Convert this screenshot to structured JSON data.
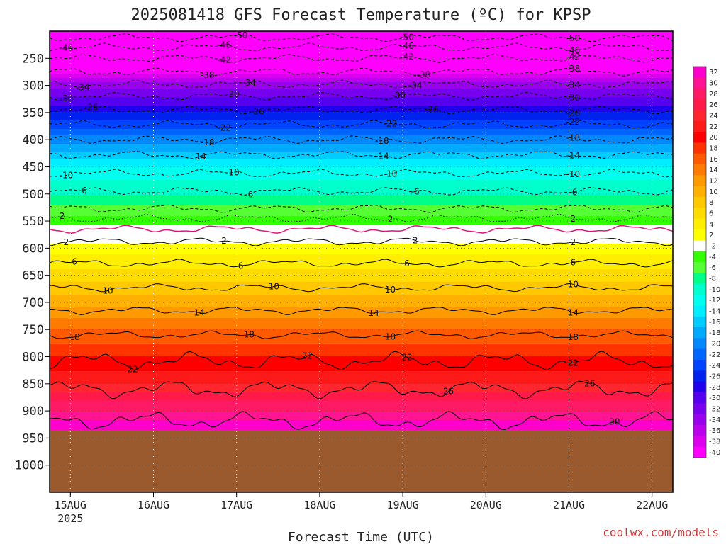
{
  "chart_data": {
    "type": "heatmap",
    "title": "2025081418 GFS Forecast Temperature (ºC) for KPSP",
    "xlabel": "Forecast Time (UTC)",
    "ylabel": "",
    "credit": "coolwx.com/models",
    "x_ticks": [
      {
        "label": "15AUG",
        "sub": "2025",
        "day": 0.25
      },
      {
        "label": "16AUG",
        "sub": "",
        "day": 1.25
      },
      {
        "label": "17AUG",
        "sub": "",
        "day": 2.25
      },
      {
        "label": "18AUG",
        "sub": "",
        "day": 3.25
      },
      {
        "label": "19AUG",
        "sub": "",
        "day": 4.25
      },
      {
        "label": "20AUG",
        "sub": "",
        "day": 5.25
      },
      {
        "label": "21AUG",
        "sub": "",
        "day": 6.25
      },
      {
        "label": "22AUG",
        "sub": "",
        "day": 7.25
      }
    ],
    "xlim": [
      0,
      7.5
    ],
    "y_ticks": [
      250,
      300,
      350,
      400,
      450,
      500,
      550,
      600,
      650,
      700,
      750,
      800,
      850,
      900,
      950,
      1000
    ],
    "ylim": [
      200,
      1050
    ],
    "ground_pressure": 935,
    "ground_color": "#9b5a2e",
    "colorbar_levels": [
      32,
      30,
      28,
      26,
      24,
      22,
      20,
      18,
      16,
      14,
      12,
      10,
      8,
      6,
      4,
      2,
      -2,
      -4,
      -6,
      -8,
      -10,
      -12,
      -14,
      -16,
      -18,
      -20,
      -22,
      -24,
      -26,
      -28,
      -30,
      -32,
      -34,
      -36,
      -38,
      -40
    ],
    "colorbar_colors": [
      "#ff00cc",
      "#ff1493",
      "#ff1a66",
      "#ff1a4a",
      "#ff2630",
      "#ff1a1a",
      "#ff0000",
      "#ff3300",
      "#ff5a00",
      "#ff7a00",
      "#ff9900",
      "#ffb000",
      "#ffc800",
      "#ffdc00",
      "#ffee00",
      "#ffff00",
      "#ffffff",
      "#33ff00",
      "#55ff33",
      "#00ff88",
      "#00ffcc",
      "#00ffee",
      "#00eeff",
      "#00ccff",
      "#00aaff",
      "#0088ff",
      "#0066ff",
      "#0044ff",
      "#0022ee",
      "#2200ee",
      "#5500ee",
      "#7700ee",
      "#9900ee",
      "#bb00ee",
      "#dd00ee",
      "#ff00ff"
    ],
    "temperature_profile": [
      {
        "pressure": 200,
        "temp": -55
      },
      {
        "pressure": 250,
        "temp": -44
      },
      {
        "pressure": 300,
        "temp": -33
      },
      {
        "pressure": 350,
        "temp": -26
      },
      {
        "pressure": 400,
        "temp": -19
      },
      {
        "pressure": 450,
        "temp": -12
      },
      {
        "pressure": 500,
        "temp": -8
      },
      {
        "pressure": 550,
        "temp": -3
      },
      {
        "pressure": 580,
        "temp": 1
      },
      {
        "pressure": 600,
        "temp": 3
      },
      {
        "pressure": 650,
        "temp": 7
      },
      {
        "pressure": 700,
        "temp": 11
      },
      {
        "pressure": 750,
        "temp": 16
      },
      {
        "pressure": 800,
        "temp": 20
      },
      {
        "pressure": 850,
        "temp": 24
      },
      {
        "pressure": 900,
        "temp": 30
      },
      {
        "pressure": 935,
        "temp": 34
      }
    ],
    "contours": [
      {
        "level": "-50",
        "pressure": 212,
        "style": "dashed",
        "labels": [
          {
            "day": 2.3
          },
          {
            "day": 4.3
          },
          {
            "day": 6.3
          }
        ]
      },
      {
        "level": "-46",
        "pressure": 230,
        "style": "dashed",
        "labels": [
          {
            "day": 0.2
          },
          {
            "day": 2.1
          },
          {
            "day": 4.3
          },
          {
            "day": 6.3
          }
        ]
      },
      {
        "level": "-42",
        "pressure": 250,
        "style": "dashed",
        "labels": [
          {
            "day": 2.1
          },
          {
            "day": 4.3
          },
          {
            "day": 6.3
          }
        ]
      },
      {
        "level": "-38",
        "pressure": 275,
        "style": "dashed",
        "labels": [
          {
            "day": 1.9
          },
          {
            "day": 4.5
          },
          {
            "day": 6.3
          }
        ]
      },
      {
        "level": "-34",
        "pressure": 298,
        "style": "dashed",
        "labels": [
          {
            "day": 0.4
          },
          {
            "day": 2.4
          },
          {
            "day": 4.4
          },
          {
            "day": 6.3
          }
        ]
      },
      {
        "level": "-30",
        "pressure": 320,
        "style": "dashed",
        "labels": [
          {
            "day": 0.2
          },
          {
            "day": 2.2
          },
          {
            "day": 4.2
          },
          {
            "day": 6.3
          }
        ]
      },
      {
        "level": "-26",
        "pressure": 345,
        "style": "dashed",
        "labels": [
          {
            "day": 0.5
          },
          {
            "day": 2.5
          },
          {
            "day": 4.6
          },
          {
            "day": 6.3
          }
        ]
      },
      {
        "level": "-22",
        "pressure": 372,
        "style": "dashed",
        "labels": [
          {
            "day": 2.1
          },
          {
            "day": 4.1
          },
          {
            "day": 6.3
          }
        ]
      },
      {
        "level": "-18",
        "pressure": 400,
        "style": "dashed",
        "labels": [
          {
            "day": 1.9
          },
          {
            "day": 4.0
          },
          {
            "day": 6.3
          }
        ]
      },
      {
        "level": "-14",
        "pressure": 428,
        "style": "dashed",
        "labels": [
          {
            "day": 1.8
          },
          {
            "day": 4.0
          },
          {
            "day": 6.3
          }
        ]
      },
      {
        "level": "-10",
        "pressure": 462,
        "style": "dashed",
        "labels": [
          {
            "day": 0.2
          },
          {
            "day": 2.2
          },
          {
            "day": 4.1
          },
          {
            "day": 6.3
          }
        ]
      },
      {
        "level": "-6",
        "pressure": 495,
        "style": "dashed",
        "labels": [
          {
            "day": 0.4
          },
          {
            "day": 2.4
          },
          {
            "day": 4.4
          },
          {
            "day": 6.3
          }
        ]
      },
      {
        "level": "-2",
        "pressure": 527,
        "style": "dashed",
        "labels": []
      },
      {
        "level": "2",
        "pressure": 545,
        "style": "dotted",
        "labels": [
          {
            "day": 0.15
          },
          {
            "day": 4.1
          },
          {
            "day": 6.3
          }
        ]
      },
      {
        "level": "2",
        "pressure": 565,
        "style": "solid-magenta",
        "labels": []
      },
      {
        "level": "2",
        "pressure": 588,
        "style": "solid",
        "labels": [
          {
            "day": 0.2
          },
          {
            "day": 2.1
          },
          {
            "day": 4.4
          },
          {
            "day": 6.3
          }
        ]
      },
      {
        "level": "6",
        "pressure": 628,
        "style": "solid",
        "labels": [
          {
            "day": 0.3
          },
          {
            "day": 2.3
          },
          {
            "day": 4.3
          },
          {
            "day": 6.3
          }
        ]
      },
      {
        "level": "10",
        "pressure": 673,
        "style": "solid",
        "labels": [
          {
            "day": 0.7
          },
          {
            "day": 2.7
          },
          {
            "day": 4.1
          },
          {
            "day": 6.3
          }
        ]
      },
      {
        "level": "14",
        "pressure": 715,
        "style": "solid",
        "labels": [
          {
            "day": 1.8
          },
          {
            "day": 3.9
          },
          {
            "day": 6.3
          }
        ]
      },
      {
        "level": "18",
        "pressure": 760,
        "style": "solid",
        "labels": [
          {
            "day": 0.3
          },
          {
            "day": 2.4
          },
          {
            "day": 4.1
          },
          {
            "day": 6.3
          }
        ]
      },
      {
        "level": "22",
        "pressure": 808,
        "style": "solid",
        "labels": [
          {
            "day": 1.0
          },
          {
            "day": 3.1
          },
          {
            "day": 4.3
          },
          {
            "day": 6.3
          }
        ]
      },
      {
        "level": "26",
        "pressure": 860,
        "style": "solid",
        "labels": [
          {
            "day": 4.8
          },
          {
            "day": 6.5
          }
        ]
      },
      {
        "level": "30",
        "pressure": 918,
        "style": "solid",
        "labels": [
          {
            "day": 6.8
          }
        ]
      }
    ]
  }
}
